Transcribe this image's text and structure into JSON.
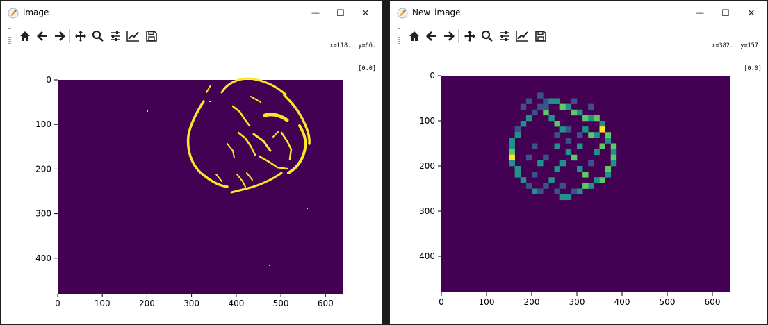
{
  "windows": [
    {
      "title": "image",
      "coords": {
        "line1": "x=118.  y=66.",
        "line2": "[0.0]"
      },
      "toolbar": [
        "home-icon",
        "back-icon",
        "forward-icon",
        "pan-icon",
        "zoom-icon",
        "configure-subplots-icon",
        "edit-axis-icon",
        "save-icon"
      ],
      "plot": {
        "x_ticks": [
          "0",
          "100",
          "200",
          "300",
          "400",
          "500",
          "600"
        ],
        "y_ticks": [
          "0",
          "100",
          "200",
          "300",
          "400"
        ],
        "colormap": [
          "#440154",
          "#fde725"
        ]
      }
    },
    {
      "title": "New_image",
      "coords": {
        "line1": "x=382.  y=157.",
        "line2": "[0.0]"
      },
      "toolbar": [
        "home-icon",
        "back-icon",
        "forward-icon",
        "pan-icon",
        "zoom-icon",
        "configure-subplots-icon",
        "edit-axis-icon",
        "save-icon"
      ],
      "plot": {
        "x_ticks": [
          "0",
          "100",
          "200",
          "300",
          "400",
          "500",
          "600"
        ],
        "y_ticks": [
          "0",
          "100",
          "200",
          "300",
          "400"
        ],
        "colormap": [
          "#440154",
          "#3b528b",
          "#21918c",
          "#5ec962",
          "#fde725"
        ]
      }
    }
  ],
  "window_controls": {
    "minimize": "—",
    "maximize": "☐",
    "close": "✕"
  }
}
